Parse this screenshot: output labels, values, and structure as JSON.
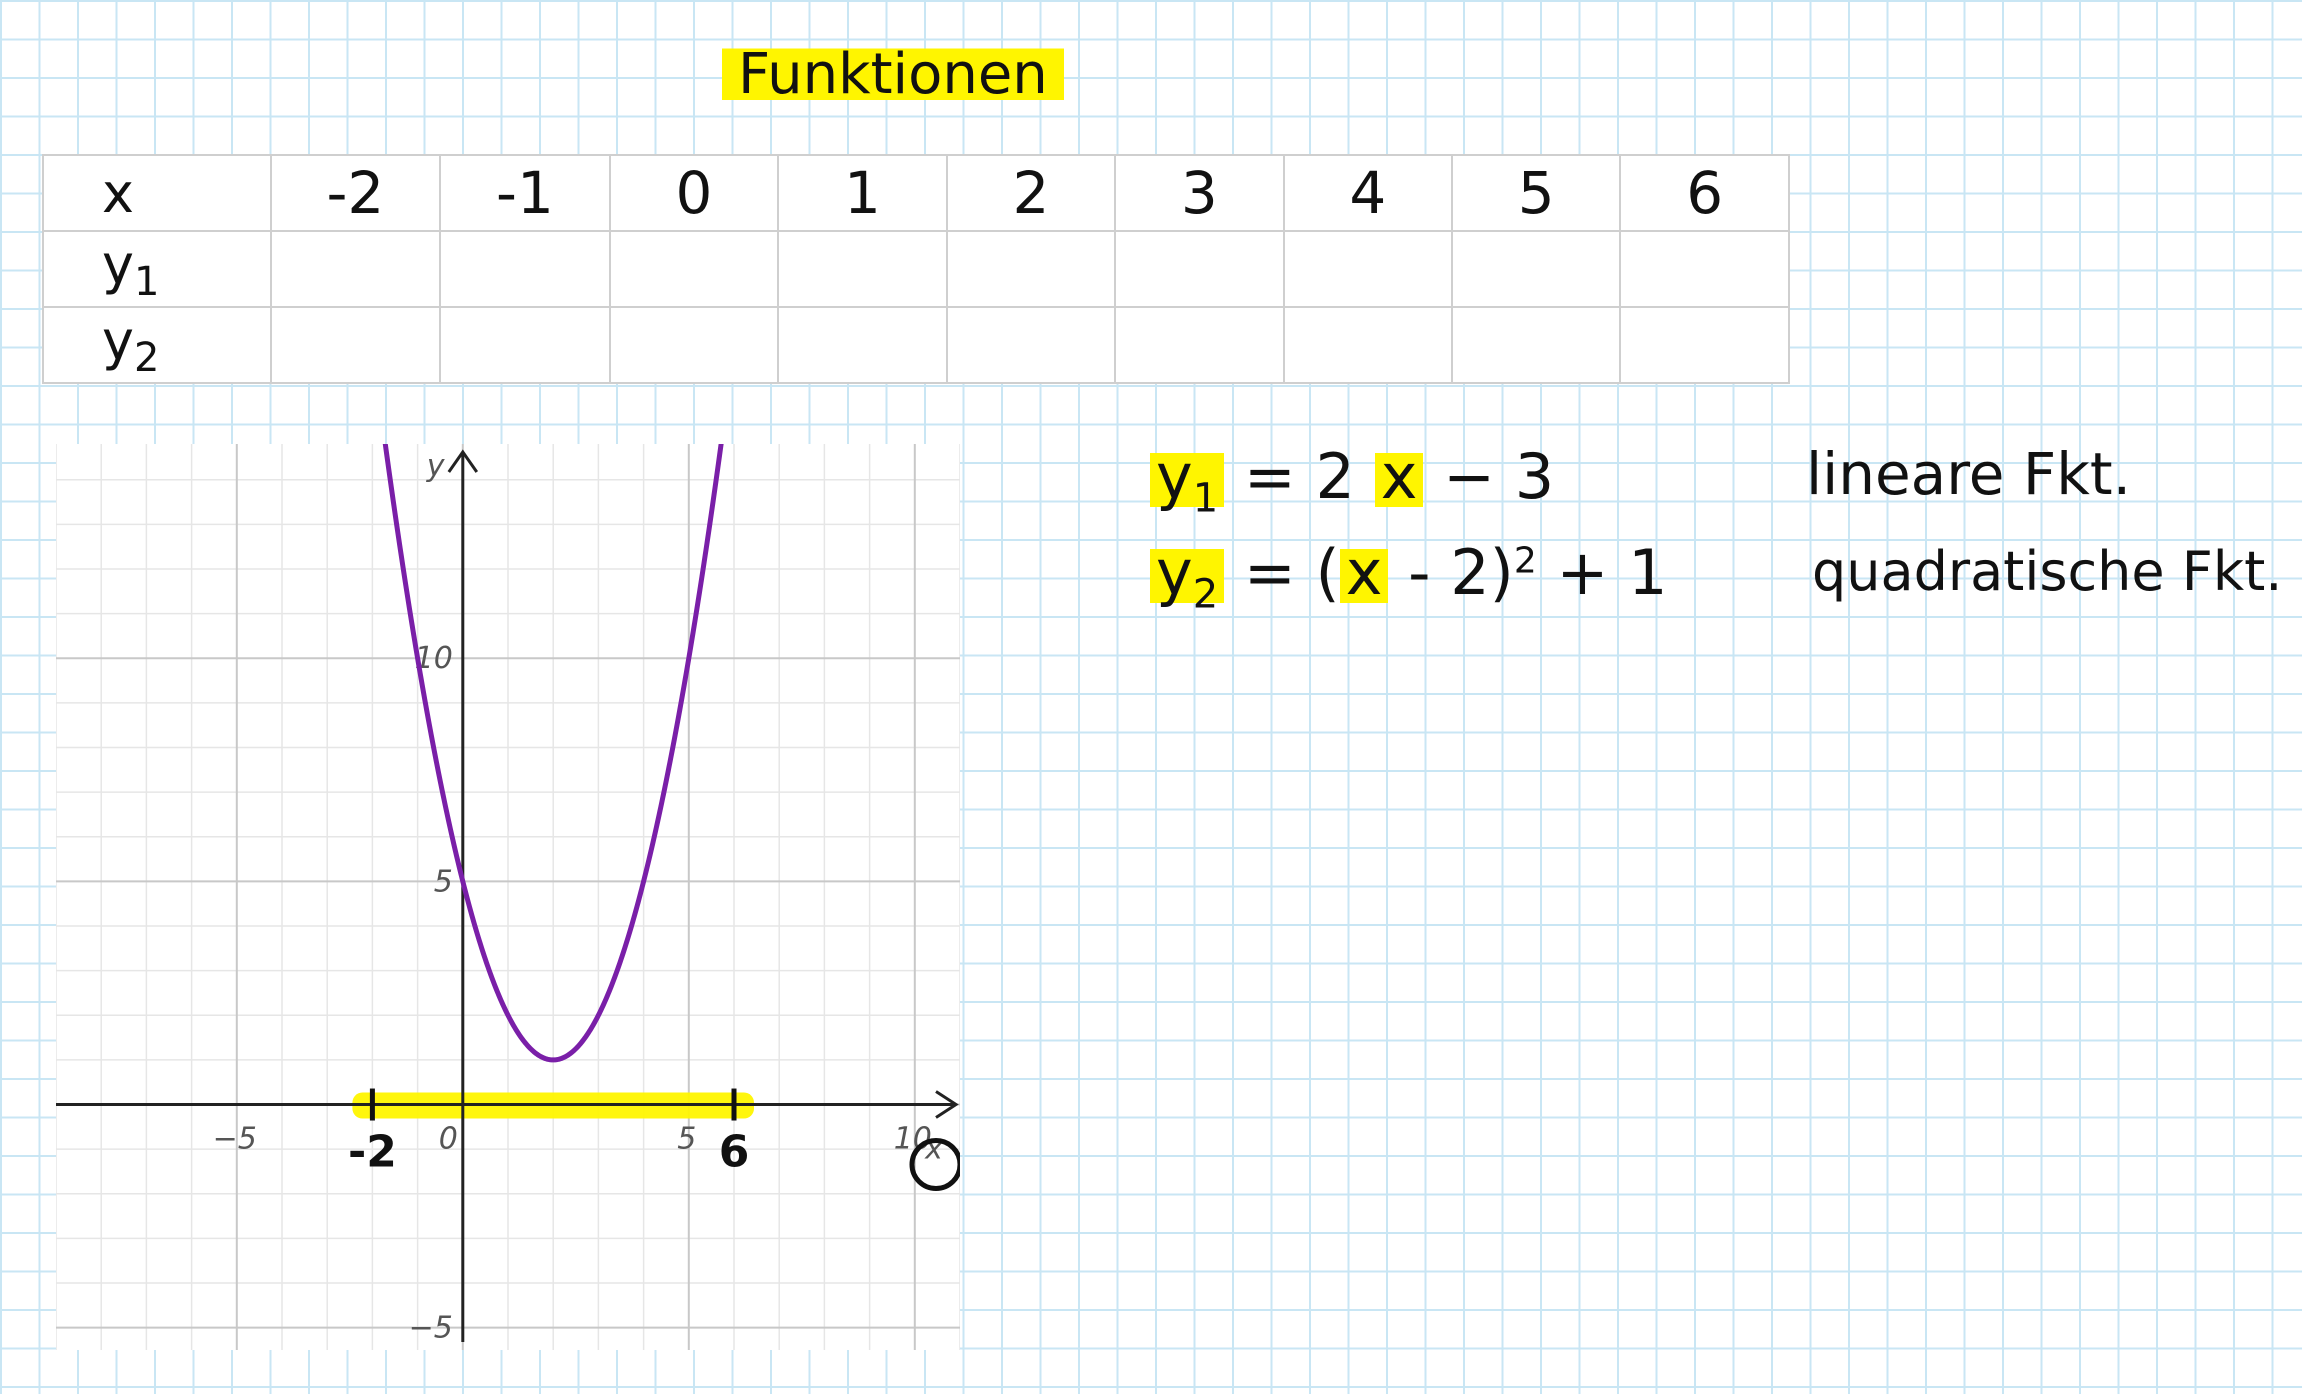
{
  "title": "Funktionen",
  "table": {
    "header_label": "x",
    "x_values": [
      "-2",
      "-1",
      "0",
      "1",
      "2",
      "3",
      "4",
      "5",
      "6"
    ],
    "rows": [
      {
        "label": "y",
        "sub": "1",
        "cells": [
          "",
          "",
          "",
          "",
          "",
          "",
          "",
          "",
          ""
        ]
      },
      {
        "label": "y",
        "sub": "2",
        "cells": [
          "",
          "",
          "",
          "",
          "",
          "",
          "",
          "",
          ""
        ]
      }
    ]
  },
  "equations": [
    {
      "lhs": "y",
      "lhs_sub": "1",
      "rhs_pre": "= 2 ",
      "var": "x",
      "rhs_post": " − 3",
      "exp": "",
      "tail": "",
      "type_label": "lineare Fkt."
    },
    {
      "lhs": "y",
      "lhs_sub": "2",
      "rhs_pre": "= (",
      "var": "x",
      "rhs_post": " - 2)",
      "exp": "2",
      "tail": " + 1",
      "type_label": "quadratische Fkt."
    }
  ],
  "chart_data": {
    "type": "line",
    "function": "(x-2)^2+1",
    "xlim": [
      -9,
      11
    ],
    "ylim": [
      -5.5,
      14.8
    ],
    "xlabel": "x",
    "ylabel": "y",
    "x_ticks": [
      "−5",
      "0",
      "5",
      "10"
    ],
    "y_ticks": [
      "−5",
      "5",
      "10"
    ],
    "vertex": [
      2,
      1
    ],
    "marked_interval": {
      "from": -2,
      "to": 6,
      "labels": [
        "-2",
        "6"
      ]
    },
    "colors": {
      "curve": "#7a1fa8",
      "highlight": "#fff500",
      "grid_major": "#c8c8c8",
      "grid_minor": "#e6e6e6"
    }
  }
}
